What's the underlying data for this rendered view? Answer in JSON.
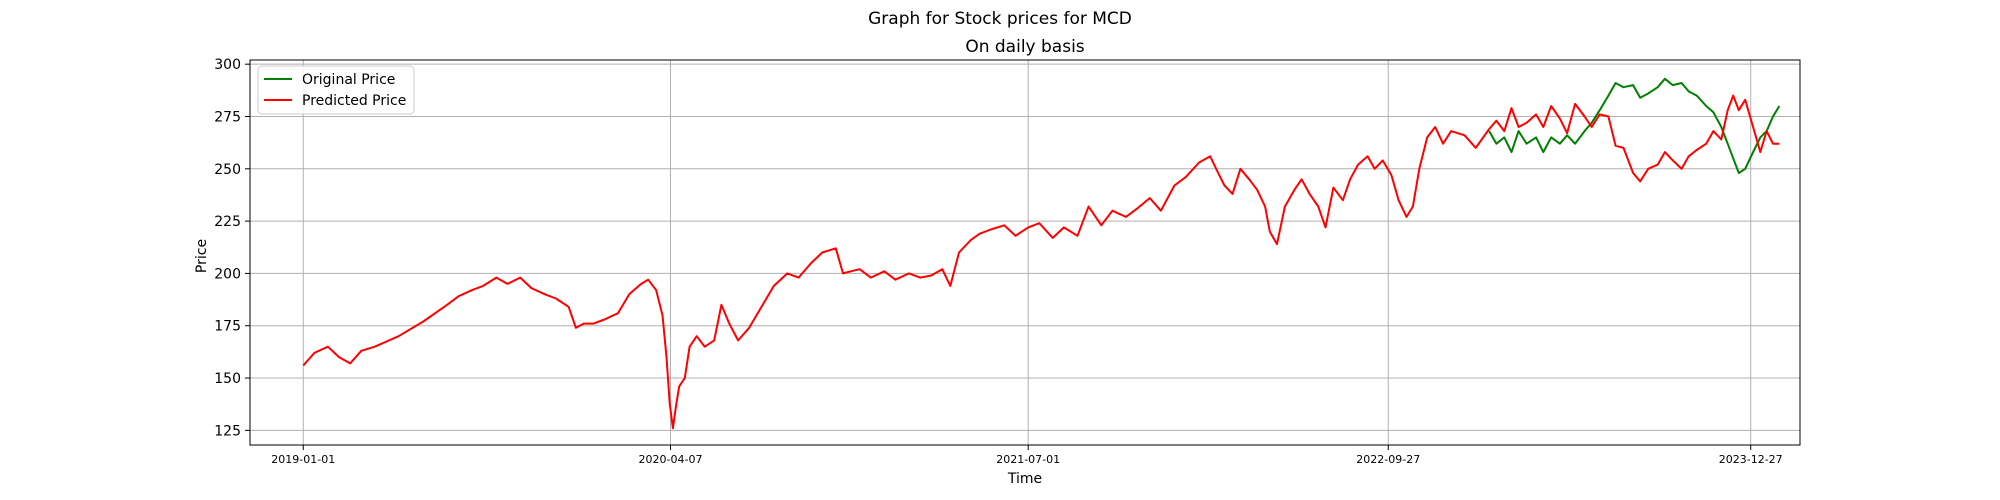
{
  "chart_data": {
    "type": "line",
    "suptitle": "Graph for Stock prices for MCD",
    "title": "On daily basis",
    "xlabel": "Time",
    "ylabel": "Price",
    "xlim": [
      "2018-10-26",
      "2024-02-27"
    ],
    "ylim": [
      118,
      302
    ],
    "x_ticks": [
      "2019-01-01",
      "2020-04-07",
      "2021-07-01",
      "2022-09-27",
      "2023-12-27"
    ],
    "y_ticks": [
      125,
      150,
      175,
      200,
      225,
      250,
      275,
      300
    ],
    "grid": true,
    "legend_position": "upper-left",
    "series": [
      {
        "name": "Original Price",
        "color": "#008000",
        "points": [
          [
            "2023-02-01",
            268
          ],
          [
            "2023-02-10",
            262
          ],
          [
            "2023-02-20",
            265
          ],
          [
            "2023-03-01",
            258
          ],
          [
            "2023-03-10",
            268
          ],
          [
            "2023-03-20",
            262
          ],
          [
            "2023-04-01",
            265
          ],
          [
            "2023-04-10",
            258
          ],
          [
            "2023-04-20",
            265
          ],
          [
            "2023-05-01",
            262
          ],
          [
            "2023-05-10",
            266
          ],
          [
            "2023-05-20",
            262
          ],
          [
            "2023-06-01",
            268
          ],
          [
            "2023-06-10",
            272
          ],
          [
            "2023-06-20",
            278
          ],
          [
            "2023-07-01",
            285
          ],
          [
            "2023-07-10",
            291
          ],
          [
            "2023-07-20",
            289
          ],
          [
            "2023-08-01",
            290
          ],
          [
            "2023-08-10",
            284
          ],
          [
            "2023-08-20",
            286
          ],
          [
            "2023-09-01",
            289
          ],
          [
            "2023-09-10",
            293
          ],
          [
            "2023-09-20",
            290
          ],
          [
            "2023-10-01",
            291
          ],
          [
            "2023-10-10",
            287
          ],
          [
            "2023-10-20",
            285
          ],
          [
            "2023-11-01",
            280
          ],
          [
            "2023-11-10",
            277
          ],
          [
            "2023-11-20",
            270
          ],
          [
            "2023-11-28",
            262
          ],
          [
            "2023-12-05",
            255
          ],
          [
            "2023-12-12",
            248
          ],
          [
            "2023-12-20",
            250
          ],
          [
            "2023-12-30",
            258
          ],
          [
            "2024-01-08",
            265
          ],
          [
            "2024-01-16",
            268
          ],
          [
            "2024-01-24",
            275
          ],
          [
            "2024-02-01",
            280
          ]
        ]
      },
      {
        "name": "Predicted Price",
        "color": "#ff0000",
        "points": [
          [
            "2019-01-01",
            156
          ],
          [
            "2019-01-15",
            162
          ],
          [
            "2019-02-01",
            165
          ],
          [
            "2019-02-15",
            160
          ],
          [
            "2019-03-01",
            157
          ],
          [
            "2019-03-15",
            163
          ],
          [
            "2019-04-01",
            165
          ],
          [
            "2019-05-01",
            170
          ],
          [
            "2019-06-01",
            177
          ],
          [
            "2019-07-01",
            185
          ],
          [
            "2019-07-15",
            189
          ],
          [
            "2019-08-01",
            192
          ],
          [
            "2019-08-15",
            194
          ],
          [
            "2019-09-01",
            198
          ],
          [
            "2019-09-15",
            195
          ],
          [
            "2019-10-01",
            198
          ],
          [
            "2019-10-15",
            193
          ],
          [
            "2019-11-01",
            190
          ],
          [
            "2019-11-15",
            188
          ],
          [
            "2019-12-01",
            184
          ],
          [
            "2019-12-10",
            174
          ],
          [
            "2019-12-20",
            176
          ],
          [
            "2020-01-01",
            176
          ],
          [
            "2020-01-15",
            178
          ],
          [
            "2020-02-01",
            181
          ],
          [
            "2020-02-15",
            190
          ],
          [
            "2020-03-01",
            195
          ],
          [
            "2020-03-10",
            197
          ],
          [
            "2020-03-20",
            192
          ],
          [
            "2020-03-28",
            180
          ],
          [
            "2020-04-02",
            160
          ],
          [
            "2020-04-06",
            138
          ],
          [
            "2020-04-10",
            126
          ],
          [
            "2020-04-14",
            137
          ],
          [
            "2020-04-18",
            146
          ],
          [
            "2020-04-25",
            150
          ],
          [
            "2020-05-01",
            165
          ],
          [
            "2020-05-10",
            170
          ],
          [
            "2020-05-20",
            165
          ],
          [
            "2020-06-01",
            168
          ],
          [
            "2020-06-10",
            185
          ],
          [
            "2020-06-20",
            176
          ],
          [
            "2020-07-01",
            168
          ],
          [
            "2020-07-15",
            174
          ],
          [
            "2020-08-01",
            185
          ],
          [
            "2020-08-15",
            194
          ],
          [
            "2020-09-01",
            200
          ],
          [
            "2020-09-15",
            198
          ],
          [
            "2020-10-01",
            205
          ],
          [
            "2020-10-15",
            210
          ],
          [
            "2020-11-01",
            212
          ],
          [
            "2020-11-10",
            200
          ],
          [
            "2020-11-20",
            201
          ],
          [
            "2020-12-01",
            202
          ],
          [
            "2020-12-15",
            198
          ],
          [
            "2021-01-01",
            201
          ],
          [
            "2021-01-15",
            197
          ],
          [
            "2021-02-01",
            200
          ],
          [
            "2021-02-15",
            198
          ],
          [
            "2021-03-01",
            199
          ],
          [
            "2021-03-15",
            202
          ],
          [
            "2021-03-25",
            194
          ],
          [
            "2021-04-05",
            210
          ],
          [
            "2021-04-20",
            216
          ],
          [
            "2021-05-01",
            219
          ],
          [
            "2021-05-15",
            221
          ],
          [
            "2021-06-01",
            223
          ],
          [
            "2021-06-15",
            218
          ],
          [
            "2021-07-01",
            222
          ],
          [
            "2021-07-15",
            224
          ],
          [
            "2021-08-01",
            217
          ],
          [
            "2021-08-15",
            222
          ],
          [
            "2021-09-01",
            218
          ],
          [
            "2021-09-15",
            232
          ],
          [
            "2021-10-01",
            223
          ],
          [
            "2021-10-15",
            230
          ],
          [
            "2021-11-01",
            227
          ],
          [
            "2021-11-15",
            231
          ],
          [
            "2021-12-01",
            236
          ],
          [
            "2021-12-15",
            230
          ],
          [
            "2022-01-01",
            242
          ],
          [
            "2022-01-15",
            246
          ],
          [
            "2022-02-01",
            253
          ],
          [
            "2022-02-15",
            256
          ],
          [
            "2022-02-25",
            248
          ],
          [
            "2022-03-05",
            242
          ],
          [
            "2022-03-15",
            238
          ],
          [
            "2022-03-25",
            250
          ],
          [
            "2022-04-05",
            245
          ],
          [
            "2022-04-15",
            240
          ],
          [
            "2022-04-25",
            232
          ],
          [
            "2022-05-01",
            220
          ],
          [
            "2022-05-10",
            214
          ],
          [
            "2022-05-20",
            232
          ],
          [
            "2022-06-01",
            240
          ],
          [
            "2022-06-10",
            245
          ],
          [
            "2022-06-20",
            238
          ],
          [
            "2022-07-01",
            232
          ],
          [
            "2022-07-10",
            222
          ],
          [
            "2022-07-20",
            241
          ],
          [
            "2022-08-01",
            235
          ],
          [
            "2022-08-10",
            245
          ],
          [
            "2022-08-20",
            252
          ],
          [
            "2022-09-01",
            256
          ],
          [
            "2022-09-10",
            250
          ],
          [
            "2022-09-20",
            254
          ],
          [
            "2022-10-01",
            247
          ],
          [
            "2022-10-10",
            235
          ],
          [
            "2022-10-20",
            227
          ],
          [
            "2022-10-28",
            232
          ],
          [
            "2022-11-05",
            250
          ],
          [
            "2022-11-15",
            265
          ],
          [
            "2022-11-25",
            270
          ],
          [
            "2022-12-05",
            262
          ],
          [
            "2022-12-15",
            268
          ],
          [
            "2023-01-01",
            266
          ],
          [
            "2023-01-15",
            260
          ],
          [
            "2023-02-01",
            269
          ],
          [
            "2023-02-10",
            273
          ],
          [
            "2023-02-20",
            268
          ],
          [
            "2023-03-01",
            279
          ],
          [
            "2023-03-10",
            270
          ],
          [
            "2023-03-20",
            272
          ],
          [
            "2023-04-01",
            276
          ],
          [
            "2023-04-10",
            270
          ],
          [
            "2023-04-20",
            280
          ],
          [
            "2023-05-01",
            274
          ],
          [
            "2023-05-10",
            267
          ],
          [
            "2023-05-20",
            281
          ],
          [
            "2023-06-01",
            275
          ],
          [
            "2023-06-10",
            270
          ],
          [
            "2023-06-20",
            276
          ],
          [
            "2023-07-01",
            275
          ],
          [
            "2023-07-10",
            261
          ],
          [
            "2023-07-20",
            260
          ],
          [
            "2023-08-01",
            248
          ],
          [
            "2023-08-10",
            244
          ],
          [
            "2023-08-20",
            250
          ],
          [
            "2023-09-01",
            252
          ],
          [
            "2023-09-10",
            258
          ],
          [
            "2023-09-20",
            254
          ],
          [
            "2023-10-01",
            250
          ],
          [
            "2023-10-10",
            256
          ],
          [
            "2023-10-20",
            259
          ],
          [
            "2023-11-01",
            262
          ],
          [
            "2023-11-10",
            268
          ],
          [
            "2023-11-20",
            264
          ],
          [
            "2023-11-28",
            278
          ],
          [
            "2023-12-05",
            285
          ],
          [
            "2023-12-12",
            278
          ],
          [
            "2023-12-20",
            283
          ],
          [
            "2023-12-30",
            270
          ],
          [
            "2024-01-08",
            258
          ],
          [
            "2024-01-16",
            268
          ],
          [
            "2024-01-24",
            262
          ],
          [
            "2024-02-01",
            262
          ]
        ]
      }
    ]
  }
}
